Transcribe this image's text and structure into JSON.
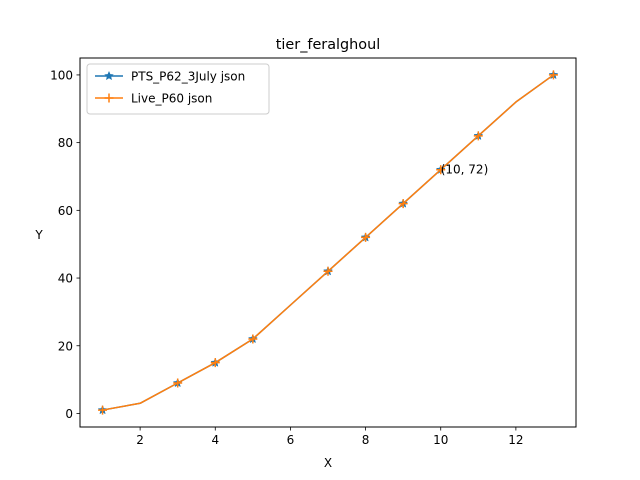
{
  "chart_data": {
    "type": "line",
    "title": "tier_feralghoul",
    "xlabel": "X",
    "ylabel": "Y",
    "xlim": [
      0.4,
      13.6
    ],
    "ylim": [
      -4,
      105
    ],
    "xticks": [
      2,
      4,
      6,
      8,
      10,
      12
    ],
    "yticks": [
      0,
      20,
      40,
      60,
      80,
      100
    ],
    "grid": false,
    "legend_position": "top-left",
    "series": [
      {
        "name": "PTS_P62_3July json",
        "color": "#1f77b4",
        "marker": "star",
        "x": [
          1,
          2,
          3,
          4,
          5,
          6,
          7,
          8,
          9,
          10,
          11,
          12,
          13
        ],
        "y": [
          1,
          3,
          9,
          15,
          22,
          32,
          42,
          52,
          62,
          72,
          82,
          92,
          100
        ],
        "marked_x": [
          1,
          3,
          4,
          5,
          7,
          8,
          9,
          10,
          11,
          13
        ]
      },
      {
        "name": "Live_P60 json",
        "color": "#ff7f0e",
        "marker": "plus",
        "x": [
          1,
          2,
          3,
          4,
          5,
          6,
          7,
          8,
          9,
          10,
          11,
          12,
          13
        ],
        "y": [
          1,
          3,
          9,
          15,
          22,
          32,
          42,
          52,
          62,
          72,
          82,
          92,
          100
        ],
        "marked_x": [
          1,
          3,
          4,
          5,
          7,
          8,
          9,
          10,
          11,
          13
        ]
      }
    ],
    "annotations": [
      {
        "text": "(10, 72)",
        "x": 10,
        "y": 72
      }
    ]
  }
}
